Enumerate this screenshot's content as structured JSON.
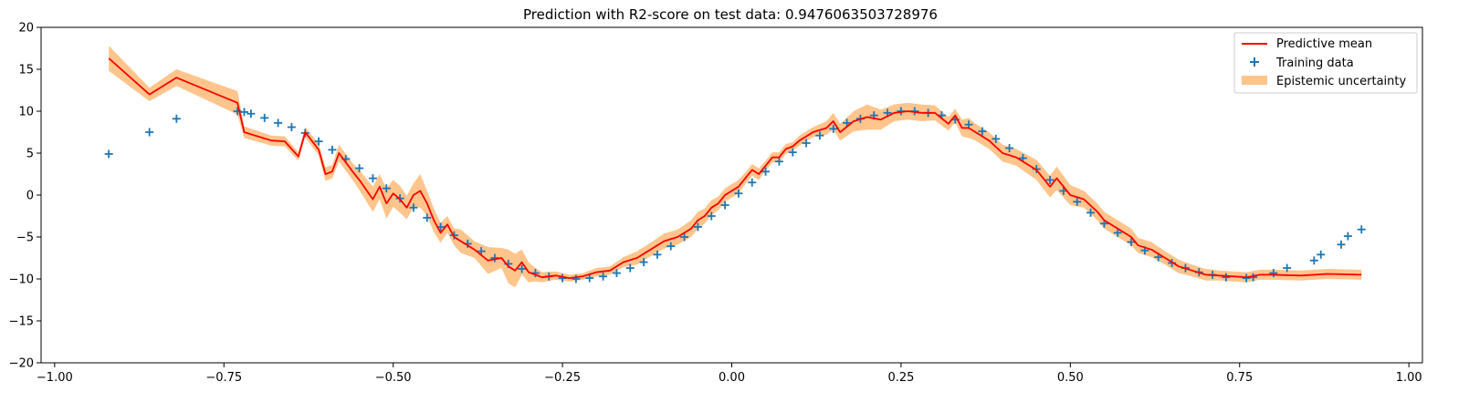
{
  "chart_data": {
    "type": "line",
    "title": "Prediction with R2-score on test data: 0.9476063503728976",
    "xlabel": "",
    "ylabel": "",
    "xlim": [
      -1.02,
      1.02
    ],
    "ylim": [
      -20,
      20
    ],
    "xticks": [
      -1.0,
      -0.75,
      -0.5,
      -0.25,
      0.0,
      0.25,
      0.5,
      0.75,
      1.0
    ],
    "xtick_labels": [
      "−1.00",
      "−0.75",
      "−0.50",
      "−0.25",
      "0.00",
      "0.25",
      "0.50",
      "0.75",
      "1.00"
    ],
    "yticks": [
      -20,
      -15,
      -10,
      -5,
      0,
      5,
      10,
      15,
      20
    ],
    "ytick_labels": [
      "−20",
      "−15",
      "−10",
      "−5",
      "0",
      "5",
      "10",
      "15",
      "20"
    ],
    "legend_position": "top-right",
    "grid": false,
    "series": [
      {
        "name": "Predictive mean",
        "kind": "line",
        "color": "#ff0000",
        "x": [
          -0.92,
          -0.86,
          -0.82,
          -0.73,
          -0.72,
          -0.68,
          -0.66,
          -0.64,
          -0.63,
          -0.61,
          -0.6,
          -0.59,
          -0.58,
          -0.56,
          -0.55,
          -0.53,
          -0.52,
          -0.51,
          -0.5,
          -0.49,
          -0.48,
          -0.47,
          -0.46,
          -0.45,
          -0.44,
          -0.43,
          -0.42,
          -0.41,
          -0.4,
          -0.38,
          -0.36,
          -0.34,
          -0.33,
          -0.32,
          -0.31,
          -0.3,
          -0.29,
          -0.28,
          -0.26,
          -0.24,
          -0.22,
          -0.2,
          -0.18,
          -0.16,
          -0.14,
          -0.12,
          -0.1,
          -0.08,
          -0.06,
          -0.05,
          -0.04,
          -0.03,
          -0.02,
          -0.01,
          0.0,
          0.01,
          0.02,
          0.03,
          0.04,
          0.05,
          0.06,
          0.07,
          0.08,
          0.09,
          0.1,
          0.12,
          0.14,
          0.15,
          0.16,
          0.18,
          0.2,
          0.22,
          0.24,
          0.26,
          0.28,
          0.3,
          0.32,
          0.33,
          0.34,
          0.35,
          0.36,
          0.38,
          0.4,
          0.42,
          0.45,
          0.47,
          0.48,
          0.5,
          0.52,
          0.54,
          0.55,
          0.57,
          0.59,
          0.6,
          0.62,
          0.64,
          0.66,
          0.68,
          0.7,
          0.72,
          0.74,
          0.76,
          0.78,
          0.8,
          0.84,
          0.88,
          0.93
        ],
        "y": [
          16.3,
          12.0,
          14.0,
          11.0,
          7.5,
          6.5,
          6.4,
          4.6,
          7.5,
          5.4,
          2.5,
          2.8,
          5.0,
          2.8,
          1.8,
          -0.5,
          1.0,
          -1.0,
          0.2,
          -0.5,
          -1.5,
          0.0,
          0.5,
          -1.0,
          -3.0,
          -4.5,
          -3.5,
          -5.0,
          -5.5,
          -6.5,
          -7.8,
          -7.5,
          -8.5,
          -9.0,
          -8.0,
          -9.2,
          -9.5,
          -9.8,
          -9.6,
          -9.9,
          -9.7,
          -9.2,
          -9.0,
          -8.0,
          -7.5,
          -6.5,
          -5.5,
          -5.0,
          -4.0,
          -3.0,
          -2.5,
          -1.5,
          -1.0,
          0.0,
          0.5,
          1.0,
          2.0,
          3.0,
          2.5,
          3.5,
          4.5,
          4.5,
          5.5,
          5.8,
          6.5,
          7.5,
          8.0,
          8.8,
          7.5,
          8.8,
          9.3,
          9.0,
          9.8,
          10.0,
          9.8,
          9.8,
          8.5,
          9.5,
          8.0,
          8.0,
          7.5,
          6.5,
          5.0,
          4.5,
          3.0,
          1.0,
          2.0,
          0.0,
          -0.5,
          -2.0,
          -3.0,
          -4.0,
          -5.0,
          -6.0,
          -6.5,
          -7.5,
          -8.5,
          -9.0,
          -9.5,
          -9.6,
          -9.7,
          -9.8,
          -9.5,
          -9.5,
          -9.6,
          -9.4,
          -9.5
        ]
      },
      {
        "name": "Training data",
        "kind": "scatter",
        "marker": "+",
        "color": "#1f77b4",
        "x": [
          -0.92,
          -0.86,
          -0.82,
          -0.73,
          -0.72,
          -0.71,
          -0.69,
          -0.67,
          -0.65,
          -0.63,
          -0.61,
          -0.59,
          -0.57,
          -0.55,
          -0.53,
          -0.51,
          -0.49,
          -0.47,
          -0.45,
          -0.43,
          -0.41,
          -0.39,
          -0.37,
          -0.35,
          -0.33,
          -0.31,
          -0.29,
          -0.27,
          -0.25,
          -0.23,
          -0.21,
          -0.19,
          -0.17,
          -0.15,
          -0.13,
          -0.11,
          -0.09,
          -0.07,
          -0.05,
          -0.03,
          -0.01,
          0.01,
          0.03,
          0.05,
          0.07,
          0.09,
          0.11,
          0.13,
          0.15,
          0.17,
          0.19,
          0.21,
          0.23,
          0.25,
          0.27,
          0.29,
          0.31,
          0.33,
          0.35,
          0.37,
          0.39,
          0.41,
          0.43,
          0.45,
          0.47,
          0.49,
          0.51,
          0.53,
          0.55,
          0.57,
          0.59,
          0.61,
          0.63,
          0.65,
          0.67,
          0.69,
          0.71,
          0.73,
          0.76,
          0.77,
          0.8,
          0.82,
          0.86,
          0.87,
          0.9,
          0.91,
          0.93
        ],
        "y": [
          4.9,
          7.5,
          9.1,
          10.0,
          9.9,
          9.7,
          9.2,
          8.6,
          8.1,
          7.4,
          6.4,
          5.4,
          4.3,
          3.2,
          2.0,
          0.8,
          -0.4,
          -1.5,
          -2.7,
          -3.8,
          -4.8,
          -5.8,
          -6.7,
          -7.5,
          -8.2,
          -8.8,
          -9.3,
          -9.7,
          -9.9,
          -10.0,
          -9.9,
          -9.7,
          -9.3,
          -8.7,
          -8.0,
          -7.1,
          -6.1,
          -5.0,
          -3.8,
          -2.5,
          -1.2,
          0.2,
          1.5,
          2.8,
          4.0,
          5.1,
          6.2,
          7.1,
          7.9,
          8.6,
          9.1,
          9.5,
          9.8,
          10.0,
          10.0,
          9.8,
          9.5,
          9.0,
          8.4,
          7.6,
          6.7,
          5.6,
          4.4,
          3.1,
          1.8,
          0.5,
          -0.8,
          -2.1,
          -3.4,
          -4.5,
          -5.6,
          -6.6,
          -7.4,
          -8.1,
          -8.7,
          -9.2,
          -9.5,
          -9.8,
          -9.9,
          -9.8,
          -9.3,
          -8.7,
          -7.8,
          -7.1,
          -5.9,
          -4.9,
          -4.1
        ]
      },
      {
        "name": "Epistemic uncertainty",
        "kind": "band",
        "color": "#ffbb78",
        "half_width": [
          1.5,
          0.8,
          1.0,
          1.4,
          0.7,
          0.6,
          0.6,
          0.5,
          0.6,
          0.7,
          0.8,
          0.8,
          1.0,
          1.0,
          1.2,
          1.5,
          1.5,
          1.8,
          1.6,
          1.6,
          1.4,
          1.4,
          2.0,
          1.5,
          1.4,
          1.2,
          1.0,
          1.0,
          1.4,
          1.0,
          1.6,
          1.2,
          2.0,
          2.0,
          1.5,
          1.2,
          0.8,
          0.6,
          0.5,
          0.4,
          0.4,
          0.5,
          0.5,
          0.6,
          0.8,
          0.8,
          0.9,
          0.9,
          1.0,
          1.0,
          0.9,
          0.9,
          0.8,
          0.8,
          0.8,
          0.8,
          0.7,
          0.7,
          0.7,
          0.6,
          0.6,
          0.6,
          0.6,
          0.5,
          0.6,
          0.6,
          0.8,
          1.0,
          1.0,
          1.2,
          1.5,
          1.2,
          1.0,
          1.0,
          1.0,
          0.9,
          0.8,
          0.8,
          1.0,
          1.2,
          1.0,
          1.0,
          1.0,
          1.0,
          1.2,
          1.3,
          1.4,
          1.2,
          1.0,
          1.0,
          1.0,
          1.0,
          1.0,
          0.9,
          0.9,
          0.8,
          0.8,
          0.7,
          0.7,
          0.6,
          0.6,
          0.6,
          0.6,
          0.6,
          0.6,
          0.6,
          0.6
        ]
      }
    ]
  }
}
